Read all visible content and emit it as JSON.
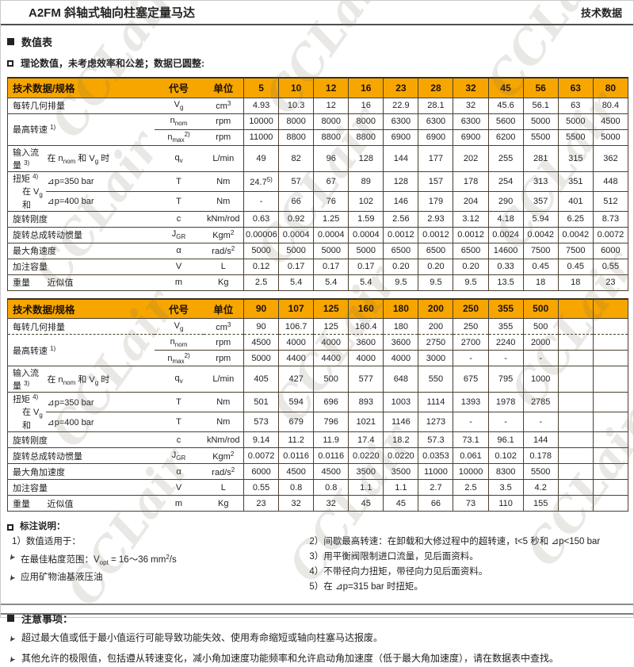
{
  "colors": {
    "header_bg": "#F7A600",
    "table_border": "#4a4030"
  },
  "watermark_text": "CCLair",
  "header": {
    "title_left": "A2FM 斜轴式轴向柱塞定量马达",
    "title_right": "技术数据"
  },
  "sections": {
    "numtable_title": "数值表",
    "numtable_note": "理论数值，未考虑效率和公差；数据已圆整:",
    "footnote_title": "标注说明：",
    "notice_title": "注意事项："
  },
  "tables": [
    {
      "header": {
        "spec": "技术数据/规格",
        "code": "代号",
        "unit": "单位",
        "sizes": [
          "5",
          "10",
          "12",
          "16",
          "23",
          "28",
          "32",
          "45",
          "56",
          "63",
          "80"
        ]
      },
      "rows": [
        {
          "lab": {
            "text": "每转几何排量",
            "colspan": 2
          },
          "code": "V~g~",
          "unit": "cm^3^",
          "values": [
            "4.93",
            "10.3",
            "12",
            "16",
            "22.9",
            "28.1",
            "32",
            "45.6",
            "56.1",
            "63",
            "80.4"
          ]
        },
        {
          "lab": {
            "text": "最高转速 ^1)^",
            "colspan": 2,
            "rowspan": 2
          },
          "code": "n~nom~",
          "unit": "rpm",
          "values": [
            "10000",
            "8000",
            "8000",
            "8000",
            "6300",
            "6300",
            "6300",
            "5600",
            "5000",
            "5000",
            "4500"
          ]
        },
        {
          "code": "n~max~^2)^",
          "unit": "rpm",
          "values": [
            "11000",
            "8800",
            "8800",
            "8800",
            "6900",
            "6900",
            "6900",
            "6200",
            "5500",
            "5500",
            "5000"
          ]
        },
        {
          "lab": {
            "text": "输入流量 ^3)^"
          },
          "sub": "在 n~nom~ 和 V~g~ 时",
          "code": "q~v~",
          "unit": "L/min",
          "values": [
            "49",
            "82",
            "96",
            "128",
            "144",
            "177",
            "202",
            "255",
            "281",
            "315",
            "362"
          ]
        },
        {
          "lab": {
            "text": "扭矩 ^4)^",
            "text2": "在 V~g~ 和",
            "rowspan": 2
          },
          "sub": "⊿p=350 bar",
          "code": "T",
          "unit": "Nm",
          "values": [
            "24.7^5)^",
            "57",
            "67",
            "89",
            "128",
            "157",
            "178",
            "254",
            "313",
            "351",
            "448"
          ]
        },
        {
          "sub": "⊿p=400 bar",
          "code": "T",
          "unit": "Nm",
          "values": [
            "-",
            "66",
            "76",
            "102",
            "146",
            "179",
            "204",
            "290",
            "357",
            "401",
            "512"
          ]
        },
        {
          "lab": {
            "text": "旋转刚度",
            "colspan": 2
          },
          "code": "c",
          "unit": "kNm/rod",
          "values": [
            "0.63",
            "0.92",
            "1.25",
            "1.59",
            "2.56",
            "2.93",
            "3.12",
            "4.18",
            "5.94",
            "6.25",
            "8.73"
          ]
        },
        {
          "lab": {
            "text": "旋转总成转动惯量",
            "colspan": 2
          },
          "code": "J~GR~",
          "unit": "Kgm^2^",
          "values": [
            "0.00006",
            "0.0004",
            "0.0004",
            "0.0004",
            "0.0012",
            "0.0012",
            "0.0012",
            "0.0024",
            "0.0042",
            "0.0042",
            "0.0072"
          ]
        },
        {
          "lab": {
            "text": "最大角速度",
            "colspan": 2
          },
          "code": "α",
          "unit": "rad/s^2^",
          "values": [
            "5000",
            "5000",
            "5000",
            "5000",
            "6500",
            "6500",
            "6500",
            "14600",
            "7500",
            "7500",
            "6000"
          ]
        },
        {
          "lab": {
            "text": "加注容量",
            "colspan": 2
          },
          "code": "V",
          "unit": "L",
          "values": [
            "0.12",
            "0.17",
            "0.17",
            "0.17",
            "0.20",
            "0.20",
            "0.20",
            "0.33",
            "0.45",
            "0.45",
            "0.55"
          ]
        },
        {
          "lab": {
            "text": "重量"
          },
          "sub": "近似值",
          "code": "m",
          "unit": "Kg",
          "values": [
            "2.5",
            "5.4",
            "5.4",
            "5.4",
            "9.5",
            "9.5",
            "9.5",
            "13.5",
            "18",
            "18",
            "23"
          ]
        }
      ]
    },
    {
      "header": {
        "spec": "技术数据/规格",
        "code": "代号",
        "unit": "单位",
        "sizes": [
          "90",
          "107",
          "125",
          "160",
          "180",
          "200",
          "250",
          "355",
          "500",
          "",
          ""
        ]
      },
      "rows": [
        {
          "lab": {
            "text": "每转几何排量",
            "colspan": 2
          },
          "code": "V~g~",
          "unit": "cm^3^",
          "values": [
            "90",
            "106.7",
            "125",
            "160.4",
            "180",
            "200",
            "250",
            "355",
            "500",
            "",
            ""
          ]
        },
        {
          "dashed": true,
          "lab": {
            "text": "最高转速 ^1)^",
            "colspan": 2,
            "rowspan": 2
          },
          "code": "n~nom~",
          "unit": "rpm",
          "values": [
            "4500",
            "4000",
            "4000",
            "3600",
            "3600",
            "2750",
            "2700",
            "2240",
            "2000",
            "",
            ""
          ]
        },
        {
          "code": "n~max~^2)^",
          "unit": "rpm",
          "values": [
            "5000",
            "4400",
            "4400",
            "4000",
            "4000",
            "3000",
            "-",
            "-",
            "-",
            "",
            ""
          ]
        },
        {
          "lab": {
            "text": "输入流量 ^3)^"
          },
          "sub": "在 n~nom~ 和 V~g~ 时",
          "code": "q~v~",
          "unit": "L/min",
          "values": [
            "405",
            "427",
            "500",
            "577",
            "648",
            "550",
            "675",
            "795",
            "1000",
            "",
            ""
          ]
        },
        {
          "lab": {
            "text": "扭矩 ^4)^",
            "text2": "在 V~g~ 和",
            "rowspan": 2
          },
          "sub": "⊿p=350 bar",
          "code": "T",
          "unit": "Nm",
          "values": [
            "501",
            "594",
            "696",
            "893",
            "1003",
            "1114",
            "1393",
            "1978",
            "2785",
            "",
            ""
          ]
        },
        {
          "sub": "⊿p=400 bar",
          "code": "T",
          "unit": "Nm",
          "values": [
            "573",
            "679",
            "796",
            "1021",
            "1146",
            "1273",
            "-",
            "-",
            "-",
            "",
            ""
          ]
        },
        {
          "lab": {
            "text": "旋转刚度",
            "colspan": 2
          },
          "code": "c",
          "unit": "kNm/rod",
          "values": [
            "9.14",
            "11.2",
            "11.9",
            "17.4",
            "18.2",
            "57.3",
            "73.1",
            "96.1",
            "144",
            "",
            ""
          ]
        },
        {
          "lab": {
            "text": "旋转总成转动惯量",
            "colspan": 2
          },
          "code": "J~GR~",
          "unit": "Kgm^2^",
          "values": [
            "0.0072",
            "0.0116",
            "0.0116",
            "0.0220",
            "0.0220",
            "0.0353",
            "0.061",
            "0.102",
            "0.178",
            "",
            ""
          ]
        },
        {
          "lab": {
            "text": "最大角加速度",
            "colspan": 2
          },
          "code": "α",
          "unit": "rad/s^2^",
          "values": [
            "6000",
            "4500",
            "4500",
            "3500",
            "3500",
            "11000",
            "10000",
            "8300",
            "5500",
            "",
            ""
          ]
        },
        {
          "lab": {
            "text": "加注容量",
            "colspan": 2
          },
          "code": "V",
          "unit": "L",
          "values": [
            "0.55",
            "0.8",
            "0.8",
            "1.1",
            "1.1",
            "2.7",
            "2.5",
            "3.5",
            "4.2",
            "",
            ""
          ]
        },
        {
          "lab": {
            "text": "重量"
          },
          "sub": "近似值",
          "code": "m",
          "unit": "Kg",
          "values": [
            "23",
            "32",
            "32",
            "45",
            "45",
            "66",
            "73",
            "110",
            "155",
            "",
            ""
          ]
        }
      ]
    }
  ],
  "footnotes_left": [
    {
      "text": "1）数值适用于：",
      "arrow": false
    },
    {
      "text": "在最佳粘度范围：V~opt~ = 16～36 mm^2^/s",
      "arrow": true
    },
    {
      "text": "应用矿物油基液压油",
      "arrow": true
    }
  ],
  "footnotes_right": [
    {
      "text": "2）间歇最高转速：在卸载和大修过程中的超转速，t<5 秒和 ⊿p<150 bar",
      "arrow": false
    },
    {
      "text": "3）用平衡阀限制进口流量，见后面资料。",
      "arrow": false
    },
    {
      "text": "4）不带径向力扭矩，带径向力见后面资料。",
      "arrow": false
    },
    {
      "text": "5）在 ⊿p=315 bar 时扭矩。",
      "arrow": false
    }
  ],
  "notices": [
    "超过最大值或低于最小值运行可能导致功能失效、使用寿命缩短或轴向柱塞马达报废。",
    "其他允许的极限值，包括遵从转速变化，减小角加速度功能频率和允许启动角加速度（低于最大角加速度），请在数据表中查找。"
  ]
}
